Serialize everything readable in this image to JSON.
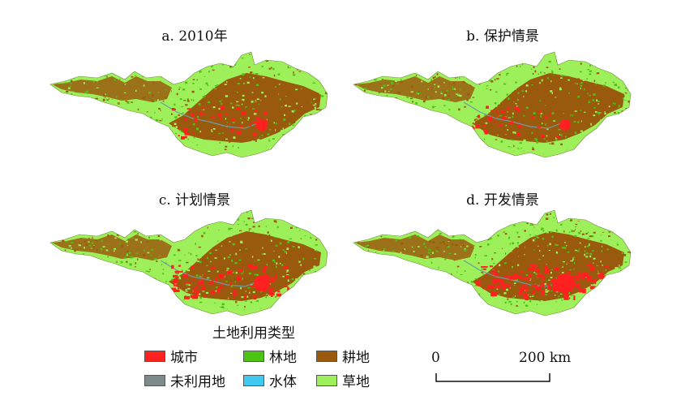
{
  "panels": [
    {
      "title": "a. 2010年",
      "urban_intensity": 0.25
    },
    {
      "title": "b. 保护情景",
      "urban_intensity": 0.2
    },
    {
      "title": "c. 计划情景",
      "urban_intensity": 0.55
    },
    {
      "title": "d. 开发情景",
      "urban_intensity": 0.8
    }
  ],
  "legend": {
    "title": "土地利用类型",
    "items": [
      {
        "label": "城市",
        "color": "#ff2020"
      },
      {
        "label": "林地",
        "color": "#4cc414"
      },
      {
        "label": "耕地",
        "color": "#9a5a0e"
      },
      {
        "label": "未利用地",
        "color": "#7f8a8c"
      },
      {
        "label": "水体",
        "color": "#3fc8f0"
      },
      {
        "label": "草地",
        "color": "#9ef05a"
      }
    ]
  },
  "scale_bar": {
    "start": "0",
    "end": "200 km"
  }
}
